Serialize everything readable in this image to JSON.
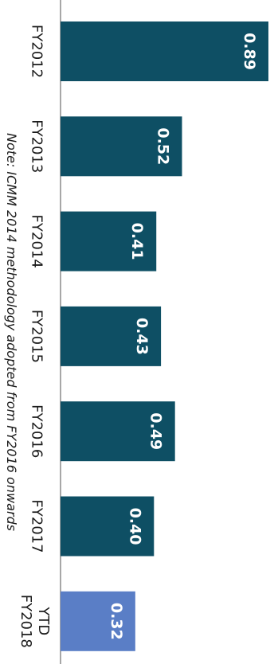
{
  "chart_data": {
    "type": "bar",
    "orientation": "horizontal",
    "categories": [
      "FY2012",
      "FY2013",
      "FY2014",
      "FY2015",
      "FY2016",
      "FY2017",
      "YTD FY2018"
    ],
    "values": [
      0.89,
      0.52,
      0.41,
      0.43,
      0.49,
      0.4,
      0.32
    ],
    "value_labels": [
      "0.89",
      "0.52",
      "0.41",
      "0.43",
      "0.49",
      "0.40",
      "0.32"
    ],
    "note": "Note: ICMM 2014 methodology adopted from FY2016 onwards",
    "xlim": [
      0,
      0.9
    ],
    "grid": false,
    "colors": {
      "bar": "#0e4f64",
      "highlight_bar": "#5a7ec6",
      "axis": "#8a8a8a"
    },
    "highlight_index": 6
  }
}
